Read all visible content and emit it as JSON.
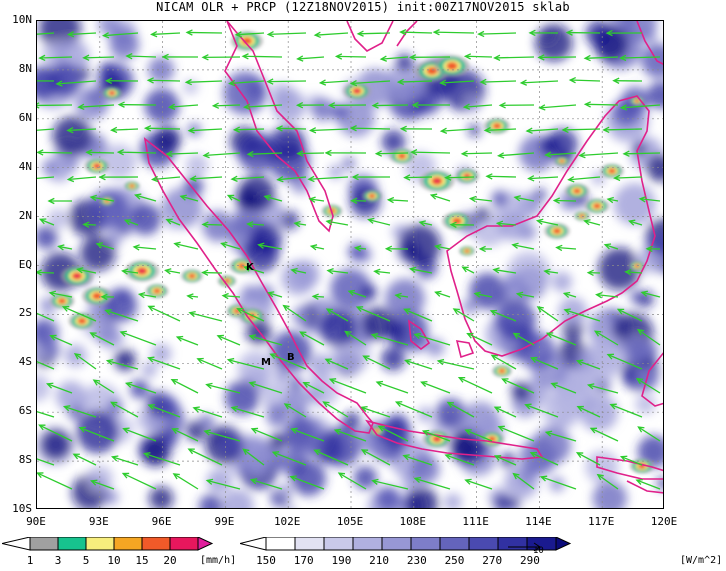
{
  "title": "NICAM OLR + PRCP (12Z18NOV2015) init:00Z17NOV2015 sklab",
  "map": {
    "lat_labels": [
      "10N",
      "8N",
      "6N",
      "4N",
      "2N",
      "EQ",
      "2S",
      "4S",
      "6S",
      "8S",
      "10S"
    ],
    "lon_labels": [
      "90E",
      "93E",
      "96E",
      "99E",
      "102E",
      "105E",
      "108E",
      "111E",
      "114E",
      "117E",
      "120E"
    ],
    "markers": [
      {
        "label": "K",
        "name": "marker-k"
      },
      {
        "label": "M",
        "name": "marker-m"
      },
      {
        "label": "B",
        "name": "marker-b"
      }
    ],
    "colors": {
      "coastline": "#e0218a",
      "wind_vector": "#2ecc2e",
      "grid": "#888888"
    }
  },
  "precip_legend": {
    "ticks": [
      "1",
      "3",
      "5",
      "10",
      "15",
      "20"
    ],
    "unit": "[mm/h]",
    "colors": [
      "#a0a0a0",
      "#17c38e",
      "#f7ee7d",
      "#f5a623",
      "#f15a29",
      "#e8175d",
      "#e01e9c"
    ]
  },
  "olr_legend": {
    "ticks": [
      "150",
      "170",
      "190",
      "210",
      "230",
      "250",
      "270",
      "290"
    ],
    "unit": "[W/m^2]",
    "vector_ref": "10",
    "colors": [
      "#ffffff",
      "#e2e2f3",
      "#c9c9ea",
      "#b0b0e0",
      "#9797d5",
      "#7e7ec9",
      "#6464bc",
      "#4a4ab0",
      "#3131a2",
      "#1a1a8f",
      "#0b0b7a"
    ]
  }
}
